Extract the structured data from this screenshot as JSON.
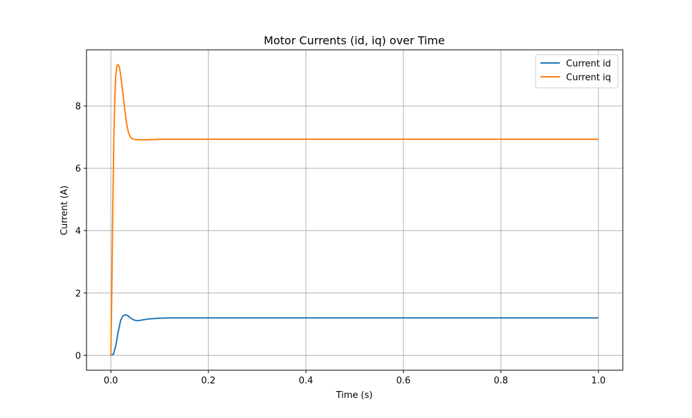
{
  "chart_data": {
    "type": "line",
    "title": "Motor Currents (id, iq) over Time",
    "xlabel": "Time (s)",
    "ylabel": "Current (A)",
    "xlim": [
      -0.05,
      1.05
    ],
    "ylim": [
      -0.48,
      9.8
    ],
    "xticks": [
      0.0,
      0.2,
      0.4,
      0.6,
      0.8,
      1.0
    ],
    "xtick_labels": [
      "0.0",
      "0.2",
      "0.4",
      "0.6",
      "0.8",
      "1.0"
    ],
    "yticks": [
      0,
      2,
      4,
      6,
      8
    ],
    "ytick_labels": [
      "0",
      "2",
      "4",
      "6",
      "8"
    ],
    "grid": true,
    "legend_position": "top-right",
    "series": [
      {
        "name": "Current id",
        "color": "#1f77b4",
        "x": [
          0.0,
          0.005,
          0.01,
          0.015,
          0.02,
          0.025,
          0.03,
          0.035,
          0.04,
          0.045,
          0.05,
          0.055,
          0.06,
          0.07,
          0.08,
          0.1,
          0.12,
          0.15,
          0.2,
          0.3,
          0.5,
          0.7,
          1.0
        ],
        "values": [
          0.0,
          0.03,
          0.3,
          0.75,
          1.12,
          1.27,
          1.3,
          1.27,
          1.2,
          1.15,
          1.12,
          1.11,
          1.12,
          1.15,
          1.17,
          1.19,
          1.2,
          1.2,
          1.2,
          1.2,
          1.2,
          1.2,
          1.2
        ]
      },
      {
        "name": "Current iq",
        "color": "#ff7f0e",
        "x": [
          0.0,
          0.002,
          0.004,
          0.006,
          0.008,
          0.01,
          0.012,
          0.014,
          0.016,
          0.018,
          0.02,
          0.024,
          0.028,
          0.032,
          0.036,
          0.04,
          0.045,
          0.05,
          0.06,
          0.07,
          0.08,
          0.1,
          0.15,
          0.2,
          0.5,
          1.0
        ],
        "values": [
          0.0,
          2.2,
          4.8,
          6.9,
          8.2,
          8.95,
          9.25,
          9.33,
          9.3,
          9.2,
          9.0,
          8.5,
          7.95,
          7.45,
          7.15,
          7.0,
          6.94,
          6.92,
          6.91,
          6.91,
          6.92,
          6.93,
          6.93,
          6.93,
          6.93,
          6.93
        ]
      }
    ]
  }
}
